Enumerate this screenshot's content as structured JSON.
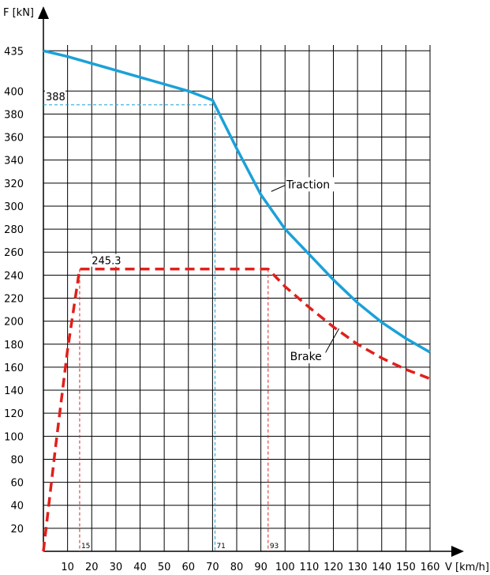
{
  "chart_data": {
    "type": "line",
    "ylabel": "F [kN]",
    "xlabel": "V [km/h]",
    "xlim": [
      0,
      160
    ],
    "ylim": [
      0,
      440
    ],
    "x_ticks": [
      "10",
      "20",
      "30",
      "40",
      "50",
      "60",
      "70",
      "80",
      "90",
      "100",
      "110",
      "120",
      "130",
      "140",
      "150",
      "160"
    ],
    "y_ticks": [
      "20",
      "40",
      "60",
      "80",
      "100",
      "120",
      "140",
      "160",
      "180",
      "200",
      "220",
      "240",
      "260",
      "280",
      "300",
      "320",
      "340",
      "360",
      "380",
      "400",
      "435"
    ],
    "grid": true,
    "series": [
      {
        "name": "Traction",
        "color": "#1ba1d8",
        "style": "solid",
        "x": [
          0,
          10,
          20,
          30,
          40,
          50,
          60,
          70,
          71,
          80,
          90,
          100,
          110,
          120,
          130,
          140,
          150,
          160
        ],
        "y": [
          435,
          430,
          424,
          418,
          412,
          406,
          400,
          392,
          388,
          350,
          310,
          280,
          258,
          236,
          216,
          199,
          185,
          173
        ]
      },
      {
        "name": "Brake",
        "color": "#e0201b",
        "style": "dashed",
        "x": [
          0,
          5,
          10,
          15,
          30,
          50,
          70,
          93,
          100,
          110,
          120,
          130,
          140,
          150,
          160
        ],
        "y": [
          0,
          90,
          175,
          245.3,
          245.3,
          245.3,
          245.3,
          245.3,
          230,
          212,
          195,
          180,
          168,
          158,
          150
        ]
      }
    ],
    "annotations": {
      "traction_point": {
        "label": "388",
        "x": 71,
        "y": 388
      },
      "brake_point": {
        "label": "245.3",
        "y": 245.3
      },
      "brake_start": {
        "label": "15",
        "x": 15
      },
      "traction_knee": {
        "label": "71",
        "x": 71
      },
      "brake_knee": {
        "label": "93",
        "x": 93
      },
      "traction_callout": {
        "label": "Traction",
        "x": 93,
        "y": 310
      },
      "brake_callout": {
        "label": "Brake",
        "x": 122,
        "y": 195
      }
    }
  }
}
